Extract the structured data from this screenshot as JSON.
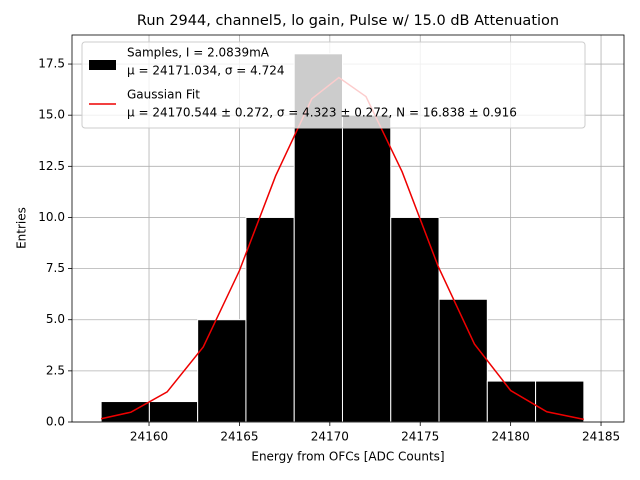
{
  "chart_data": {
    "type": "histogram",
    "title": "Run 2944, channel5, lo gain, Pulse w/ 15.0 dB Attenuation",
    "xlabel": "Energy from OFCs [ADC Counts]",
    "ylabel": "Entries",
    "bins": [
      24157.35,
      24160.02,
      24162.69,
      24165.36,
      24168.03,
      24170.7,
      24173.37,
      24176.04,
      24178.71,
      24181.38,
      24184.05
    ],
    "values": [
      1,
      1,
      5,
      10,
      18,
      15,
      10,
      6,
      2,
      2
    ],
    "color": "#000000",
    "edgecolor": "#ffffff",
    "name": [
      "Samples, I = 2.0839mA",
      "μ = 24171.034, σ = 4.724"
    ],
    "fit": {
      "type": "line",
      "name": [
        "Gaussian Fit",
        "μ = 24170.544 ± 0.272, σ = 4.323 ± 0.272, N = 16.838 ± 0.916"
      ],
      "color": "#ee0000",
      "x": [
        24157.35,
        24159,
        24161,
        24163,
        24165,
        24167,
        24169,
        24170.5,
        24172,
        24174,
        24176,
        24178,
        24180,
        24182,
        24184.05
      ],
      "values": [
        0.16,
        0.48,
        1.47,
        3.67,
        7.4,
        12.03,
        15.8,
        16.84,
        15.91,
        12.23,
        7.59,
        3.81,
        1.54,
        0.5,
        0.13
      ]
    },
    "xlim": [
      24155.74,
      24186.27
    ],
    "ylim": [
      0,
      18.92
    ],
    "xticks": [
      24160,
      24165,
      24170,
      24175,
      24180,
      24185
    ],
    "yticks": [
      {
        "value": 0,
        "label": "0.0"
      },
      2.5,
      {
        "value": 5,
        "label": "5.0"
      },
      7.5,
      {
        "value": 10,
        "label": "10.0"
      },
      12.5,
      {
        "value": 15,
        "label": "15.0"
      },
      17.5
    ],
    "grid": true,
    "legend": "upper left"
  }
}
